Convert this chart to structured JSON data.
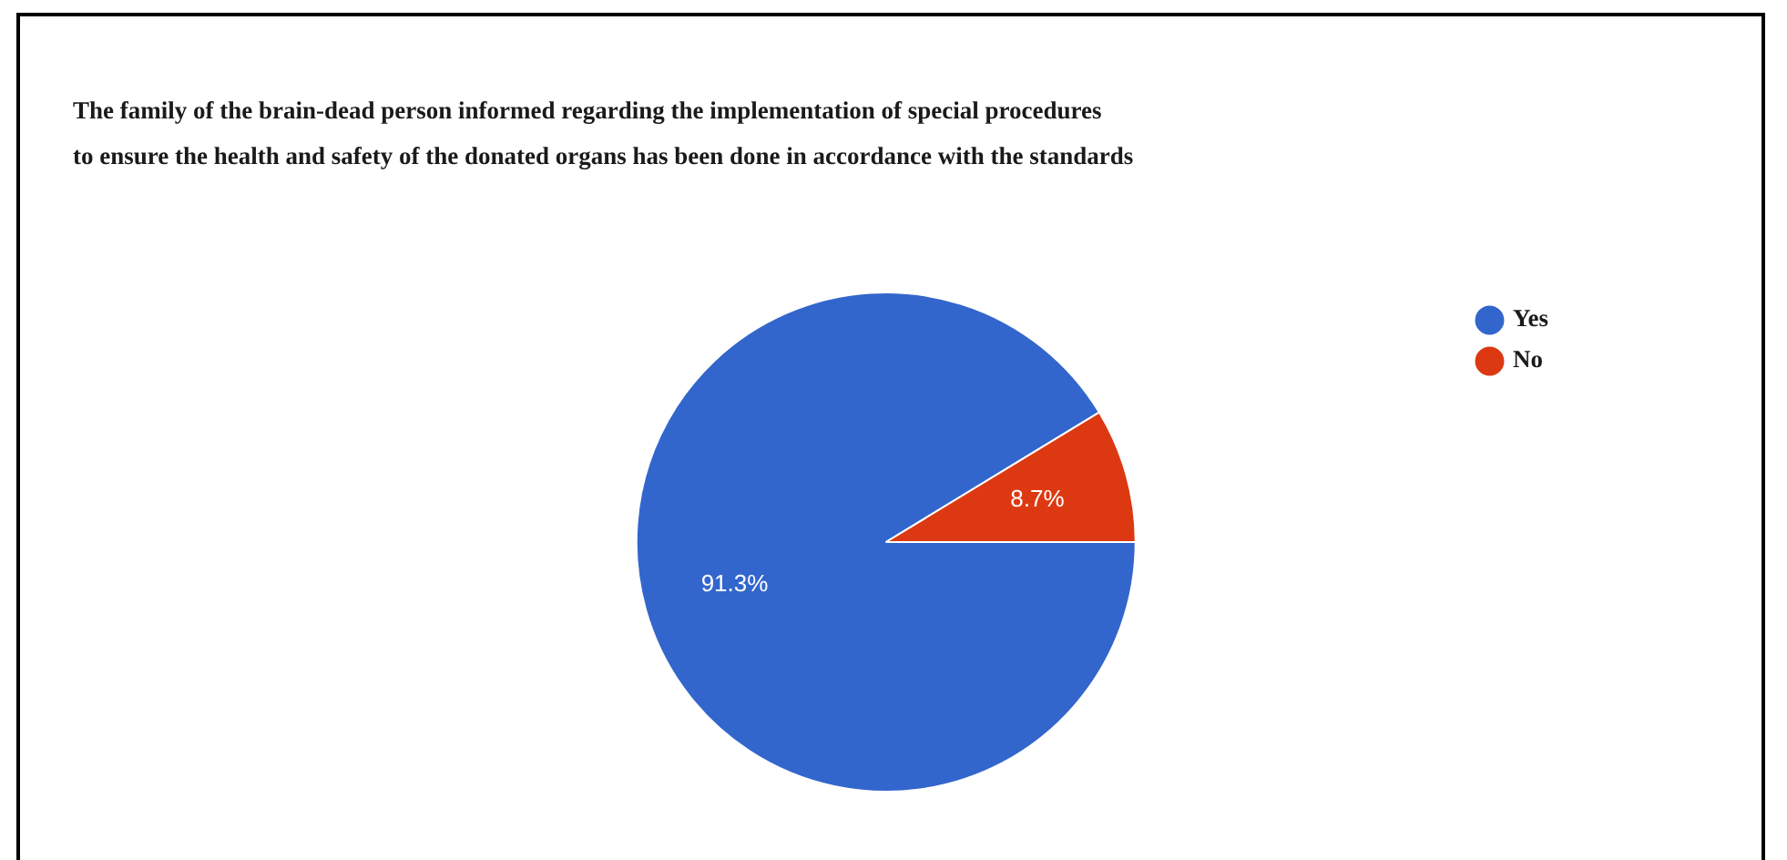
{
  "chart_data": {
    "type": "pie",
    "title": "The family of the brain-dead person informed regarding the implementation of special procedures\nto ensure the health and safety of the donated organs has been done in accordance with the standards",
    "categories": [
      "Yes",
      "No"
    ],
    "values": [
      91.3,
      8.7
    ],
    "colors": [
      "#3366cc",
      "#dc3912"
    ],
    "value_labels": [
      "91.3%",
      "8.7%"
    ],
    "legend": "top right"
  }
}
